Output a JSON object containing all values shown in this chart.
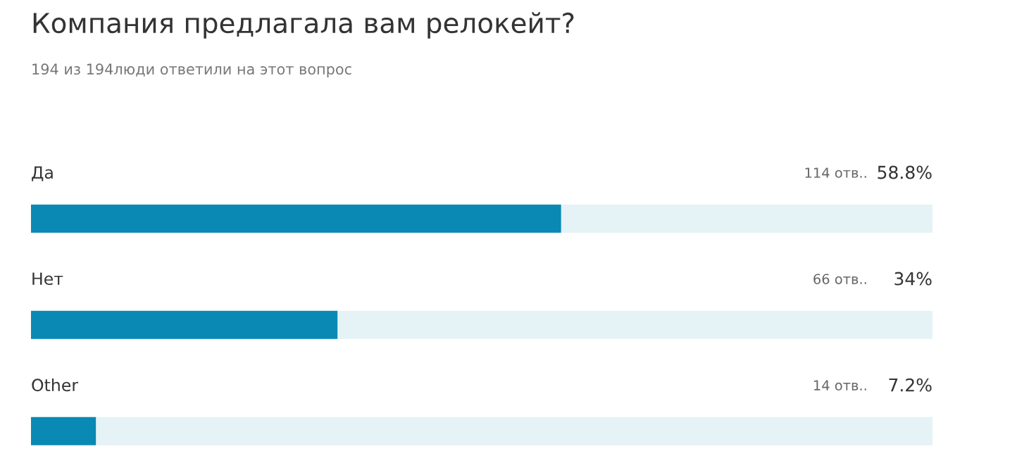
{
  "chart_data": {
    "type": "bar",
    "orientation": "horizontal",
    "title": "Компания предлагала вам релокейт?",
    "subtitle": "194 из 194люди ответили на этот вопрос",
    "categories": [
      "Да",
      "Нет",
      "Other"
    ],
    "values": [
      58.8,
      34,
      7.2
    ],
    "color": "#0a89b4",
    "value_labels": [
      "58.8%",
      "34%",
      "7.2%"
    ],
    "xlim": [
      0,
      100
    ],
    "annotations": [
      "114 отв..",
      "66 отв..",
      "14 отв.."
    ]
  }
}
